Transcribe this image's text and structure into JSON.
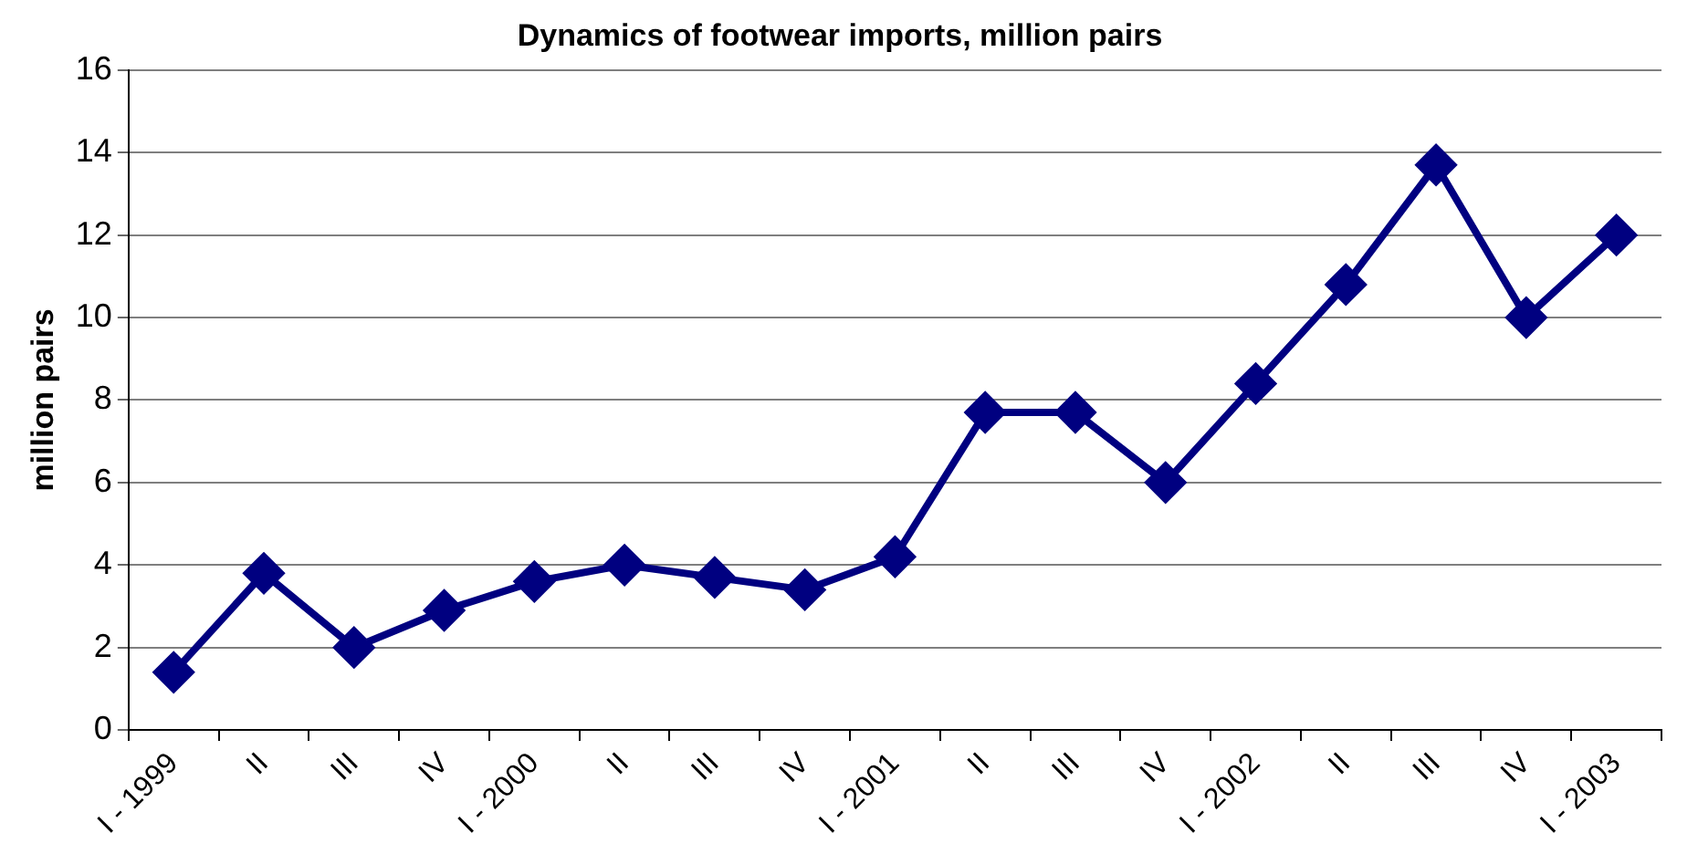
{
  "chart_data": {
    "type": "line",
    "title": "Dynamics of footwear imports, million pairs",
    "ylabel": "million pairs",
    "categories": [
      "I - 1999",
      "II",
      "III",
      "IV",
      "I - 2000",
      "II",
      "III",
      "IV",
      "I - 2001",
      "II",
      "III",
      "IV",
      "I - 2002",
      "II",
      "III",
      "IV",
      "I - 2003"
    ],
    "series": [
      {
        "color": "#000080",
        "values": [
          1.4,
          3.8,
          2.0,
          2.9,
          3.6,
          4.0,
          3.7,
          3.4,
          4.2,
          7.7,
          7.7,
          6.0,
          8.4,
          10.8,
          13.7,
          10.0,
          12.0
        ]
      }
    ],
    "ylim": [
      0,
      16
    ],
    "yticks": [
      0,
      2,
      4,
      6,
      8,
      10,
      12,
      14,
      16
    ],
    "grid": "y",
    "legend": false,
    "marker": "diamond",
    "line_style": "solid"
  }
}
